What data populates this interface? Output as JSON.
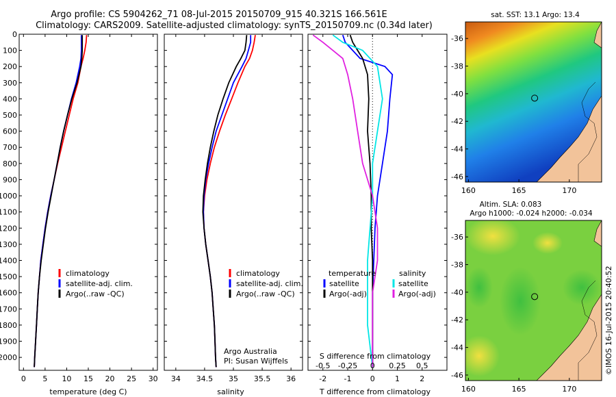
{
  "title_line1": "Argo profile: CS 5904262_71 08-Jul-2015 20150709_915 40.321S 166.561E",
  "title_line2": "Climatology: CARS2009. Satellite-adjusted climatology: synTS_20150709.nc (0.34d later)",
  "watermark": "©IMOS 16-Jul-2015 20:40:52",
  "colors": {
    "climatology": "#ff0000",
    "satellite": "#0000ff",
    "argo": "#000000",
    "sal_satellite": "#00e5e5",
    "sal_argo": "#e020e0",
    "land": "#f2c39a"
  },
  "chart_data": [
    {
      "id": "temperature",
      "type": "line",
      "xlabel": "temperature (deg C)",
      "xlim": [
        -1,
        31
      ],
      "xticks": [
        0,
        5,
        10,
        15,
        20,
        25,
        30
      ],
      "ylim": [
        2080,
        0
      ],
      "yticks": [
        0,
        100,
        200,
        300,
        400,
        500,
        600,
        700,
        800,
        900,
        1000,
        1100,
        1200,
        1300,
        1400,
        1500,
        1600,
        1700,
        1800,
        1900,
        2000
      ],
      "legend": [
        "climatology",
        "satellite-adj. clim.",
        "Argo(..raw -QC)"
      ],
      "series": [
        {
          "key": "climatology",
          "points": [
            [
              14.6,
              5
            ],
            [
              14.5,
              50
            ],
            [
              14.2,
              100
            ],
            [
              13.8,
              150
            ],
            [
              13.3,
              200
            ],
            [
              12.6,
              300
            ],
            [
              11.5,
              400
            ],
            [
              10.6,
              500
            ],
            [
              9.7,
              600
            ],
            [
              8.8,
              700
            ],
            [
              7.9,
              800
            ],
            [
              7.1,
              900
            ],
            [
              6.3,
              1000
            ],
            [
              5.6,
              1100
            ],
            [
              5.0,
              1200
            ],
            [
              4.5,
              1300
            ],
            [
              4.0,
              1400
            ],
            [
              3.7,
              1500
            ],
            [
              3.4,
              1600
            ],
            [
              3.2,
              1700
            ],
            [
              3.0,
              1800
            ],
            [
              2.8,
              1900
            ],
            [
              2.6,
              2000
            ],
            [
              2.5,
              2060
            ]
          ]
        },
        {
          "key": "satellite",
          "points": [
            [
              13.4,
              5
            ],
            [
              13.4,
              50
            ],
            [
              13.4,
              100
            ],
            [
              13.3,
              150
            ],
            [
              13.0,
              200
            ],
            [
              12.2,
              300
            ],
            [
              11.1,
              400
            ],
            [
              10.2,
              500
            ],
            [
              9.3,
              600
            ],
            [
              8.5,
              700
            ],
            [
              7.8,
              800
            ],
            [
              7.1,
              900
            ],
            [
              6.3,
              1000
            ],
            [
              5.6,
              1100
            ],
            [
              5.0,
              1200
            ],
            [
              4.5,
              1300
            ],
            [
              4.0,
              1400
            ],
            [
              3.7,
              1500
            ],
            [
              3.4,
              1600
            ],
            [
              3.2,
              1700
            ],
            [
              3.0,
              1800
            ],
            [
              2.8,
              1900
            ],
            [
              2.6,
              2000
            ],
            [
              2.5,
              2060
            ]
          ]
        },
        {
          "key": "argo",
          "points": [
            [
              13.6,
              5
            ],
            [
              13.6,
              50
            ],
            [
              13.6,
              100
            ],
            [
              13.5,
              150
            ],
            [
              13.3,
              200
            ],
            [
              12.4,
              300
            ],
            [
              11.2,
              400
            ],
            [
              10.2,
              500
            ],
            [
              9.3,
              600
            ],
            [
              8.5,
              700
            ],
            [
              7.8,
              800
            ],
            [
              7.1,
              900
            ],
            [
              6.4,
              1000
            ],
            [
              5.7,
              1100
            ],
            [
              5.1,
              1200
            ],
            [
              4.6,
              1300
            ],
            [
              4.1,
              1400
            ],
            [
              3.7,
              1500
            ],
            [
              3.4,
              1600
            ],
            [
              3.2,
              1700
            ],
            [
              3.0,
              1800
            ],
            [
              2.8,
              1900
            ],
            [
              2.6,
              2000
            ],
            [
              2.5,
              2060
            ]
          ]
        }
      ]
    },
    {
      "id": "salinity",
      "type": "line",
      "xlabel": "salinity",
      "xlim": [
        33.8,
        36.2
      ],
      "xticks": [
        34,
        34.5,
        35,
        35.5,
        36
      ],
      "xticklabels": [
        "34",
        "34.5",
        "35",
        "35.5",
        "36"
      ],
      "ylim": [
        2080,
        0
      ],
      "legend": [
        "climatology",
        "satellite-adj. clim.",
        "Argo(..raw -QC)"
      ],
      "annotation": [
        "Argo Australia",
        "PI: Susan Wijffels"
      ],
      "series": [
        {
          "key": "climatology",
          "points": [
            [
              35.38,
              5
            ],
            [
              35.36,
              50
            ],
            [
              35.33,
              100
            ],
            [
              35.28,
              150
            ],
            [
              35.2,
              200
            ],
            [
              35.08,
              300
            ],
            [
              34.97,
              400
            ],
            [
              34.86,
              500
            ],
            [
              34.76,
              600
            ],
            [
              34.67,
              700
            ],
            [
              34.6,
              800
            ],
            [
              34.54,
              900
            ],
            [
              34.5,
              1000
            ],
            [
              34.48,
              1100
            ],
            [
              34.49,
              1200
            ],
            [
              34.52,
              1300
            ],
            [
              34.56,
              1400
            ],
            [
              34.6,
              1500
            ],
            [
              34.63,
              1600
            ],
            [
              34.65,
              1700
            ],
            [
              34.67,
              1800
            ],
            [
              34.68,
              1900
            ],
            [
              34.69,
              2000
            ],
            [
              34.7,
              2060
            ]
          ]
        },
        {
          "key": "satellite",
          "points": [
            [
              35.3,
              5
            ],
            [
              35.3,
              50
            ],
            [
              35.26,
              100
            ],
            [
              35.22,
              150
            ],
            [
              35.15,
              200
            ],
            [
              35.0,
              300
            ],
            [
              34.9,
              400
            ],
            [
              34.8,
              500
            ],
            [
              34.7,
              600
            ],
            [
              34.63,
              700
            ],
            [
              34.57,
              800
            ],
            [
              34.52,
              900
            ],
            [
              34.49,
              1000
            ],
            [
              34.48,
              1100
            ],
            [
              34.49,
              1200
            ],
            [
              34.52,
              1300
            ],
            [
              34.56,
              1400
            ],
            [
              34.6,
              1500
            ],
            [
              34.63,
              1600
            ],
            [
              34.65,
              1700
            ],
            [
              34.67,
              1800
            ],
            [
              34.68,
              1900
            ],
            [
              34.69,
              2000
            ],
            [
              34.7,
              2060
            ]
          ]
        },
        {
          "key": "argo",
          "points": [
            [
              35.23,
              5
            ],
            [
              35.22,
              50
            ],
            [
              35.2,
              100
            ],
            [
              35.13,
              150
            ],
            [
              35.05,
              200
            ],
            [
              34.92,
              300
            ],
            [
              34.82,
              400
            ],
            [
              34.73,
              500
            ],
            [
              34.66,
              600
            ],
            [
              34.6,
              700
            ],
            [
              34.55,
              800
            ],
            [
              34.51,
              900
            ],
            [
              34.48,
              1000
            ],
            [
              34.47,
              1100
            ],
            [
              34.49,
              1200
            ],
            [
              34.52,
              1300
            ],
            [
              34.56,
              1400
            ],
            [
              34.6,
              1500
            ],
            [
              34.63,
              1600
            ],
            [
              34.65,
              1700
            ],
            [
              34.67,
              1800
            ],
            [
              34.68,
              1900
            ],
            [
              34.69,
              2000
            ],
            [
              34.7,
              2060
            ]
          ]
        }
      ]
    },
    {
      "id": "difference",
      "type": "line",
      "xlabel": "T difference from climatology",
      "xlabel2": "S difference from climatology",
      "xlim": [
        -2.6,
        3
      ],
      "xticks": [
        -2,
        -1,
        0,
        1,
        2
      ],
      "s_xticklabels": [
        "-0.5",
        "-0.25",
        "0",
        "0.25",
        "0.5"
      ],
      "ylim": [
        2080,
        0
      ],
      "legend_left_title": "temperature",
      "legend_right_title": "salinity",
      "legend_left": [
        "satellite",
        "Argo(-adj)"
      ],
      "legend_right": [
        "satellite",
        "Argo(-adj)"
      ],
      "series": [
        {
          "key": "t_satellite",
          "points": [
            [
              -1.2,
              5
            ],
            [
              -1.1,
              50
            ],
            [
              -0.8,
              100
            ],
            [
              -0.5,
              150
            ],
            [
              0.5,
              200
            ],
            [
              0.8,
              250
            ],
            [
              0.7,
              400
            ],
            [
              0.6,
              600
            ],
            [
              0.4,
              800
            ],
            [
              0.2,
              1000
            ],
            [
              0.1,
              1200
            ],
            [
              0.05,
              1400
            ],
            [
              0.0,
              1600
            ],
            [
              0.0,
              2060
            ]
          ]
        },
        {
          "key": "t_argo",
          "points": [
            [
              -0.9,
              5
            ],
            [
              -0.8,
              50
            ],
            [
              -0.6,
              100
            ],
            [
              -0.4,
              150
            ],
            [
              -0.2,
              250
            ],
            [
              -0.15,
              400
            ],
            [
              -0.2,
              600
            ],
            [
              -0.1,
              800
            ],
            [
              -0.05,
              1000
            ],
            [
              -0.05,
              1200
            ],
            [
              0.0,
              1400
            ],
            [
              0.0,
              2060
            ]
          ]
        },
        {
          "key": "s_satellite",
          "points": [
            [
              -0.4,
              5
            ],
            [
              -0.3,
              50
            ],
            [
              -0.1,
              100
            ],
            [
              0.05,
              200
            ],
            [
              0.1,
              400
            ],
            [
              0.05,
              600
            ],
            [
              0.0,
              800
            ],
            [
              0.0,
              1000
            ],
            [
              -0.05,
              1400
            ],
            [
              -0.05,
              1800
            ],
            [
              0.0,
              2060
            ]
          ]
        },
        {
          "key": "s_argo",
          "points": [
            [
              -0.6,
              5
            ],
            [
              -0.5,
              50
            ],
            [
              -0.4,
              100
            ],
            [
              -0.3,
              150
            ],
            [
              -0.25,
              250
            ],
            [
              -0.2,
              400
            ],
            [
              -0.15,
              600
            ],
            [
              -0.1,
              800
            ],
            [
              0.0,
              1000
            ],
            [
              0.05,
              1200
            ],
            [
              0.05,
              1400
            ],
            [
              0.0,
              1600
            ],
            [
              0.0,
              2060
            ]
          ]
        }
      ]
    },
    {
      "id": "sst_map",
      "type": "heatmap",
      "title": "sat. SST: 13.1  Argo: 13.4",
      "xticks": [
        160,
        165,
        170
      ],
      "yticks": [
        -36,
        -38,
        -40,
        -42,
        -44,
        -46
      ],
      "xlim": [
        159.7,
        173.2
      ],
      "ylim": [
        -46.4,
        -34.8
      ],
      "marker": [
        166.56,
        -40.32
      ]
    },
    {
      "id": "sla_map",
      "type": "heatmap",
      "title_line1": "Altim. SLA: 0.083",
      "title_line2": "Argo h1000: -0.024 h2000: -0.034",
      "xticks": [
        160,
        165,
        170
      ],
      "yticks": [
        -36,
        -38,
        -40,
        -42,
        -44,
        -46
      ],
      "xlim": [
        159.7,
        173.2
      ],
      "ylim": [
        -46.4,
        -34.8
      ],
      "marker": [
        166.56,
        -40.32
      ]
    }
  ]
}
